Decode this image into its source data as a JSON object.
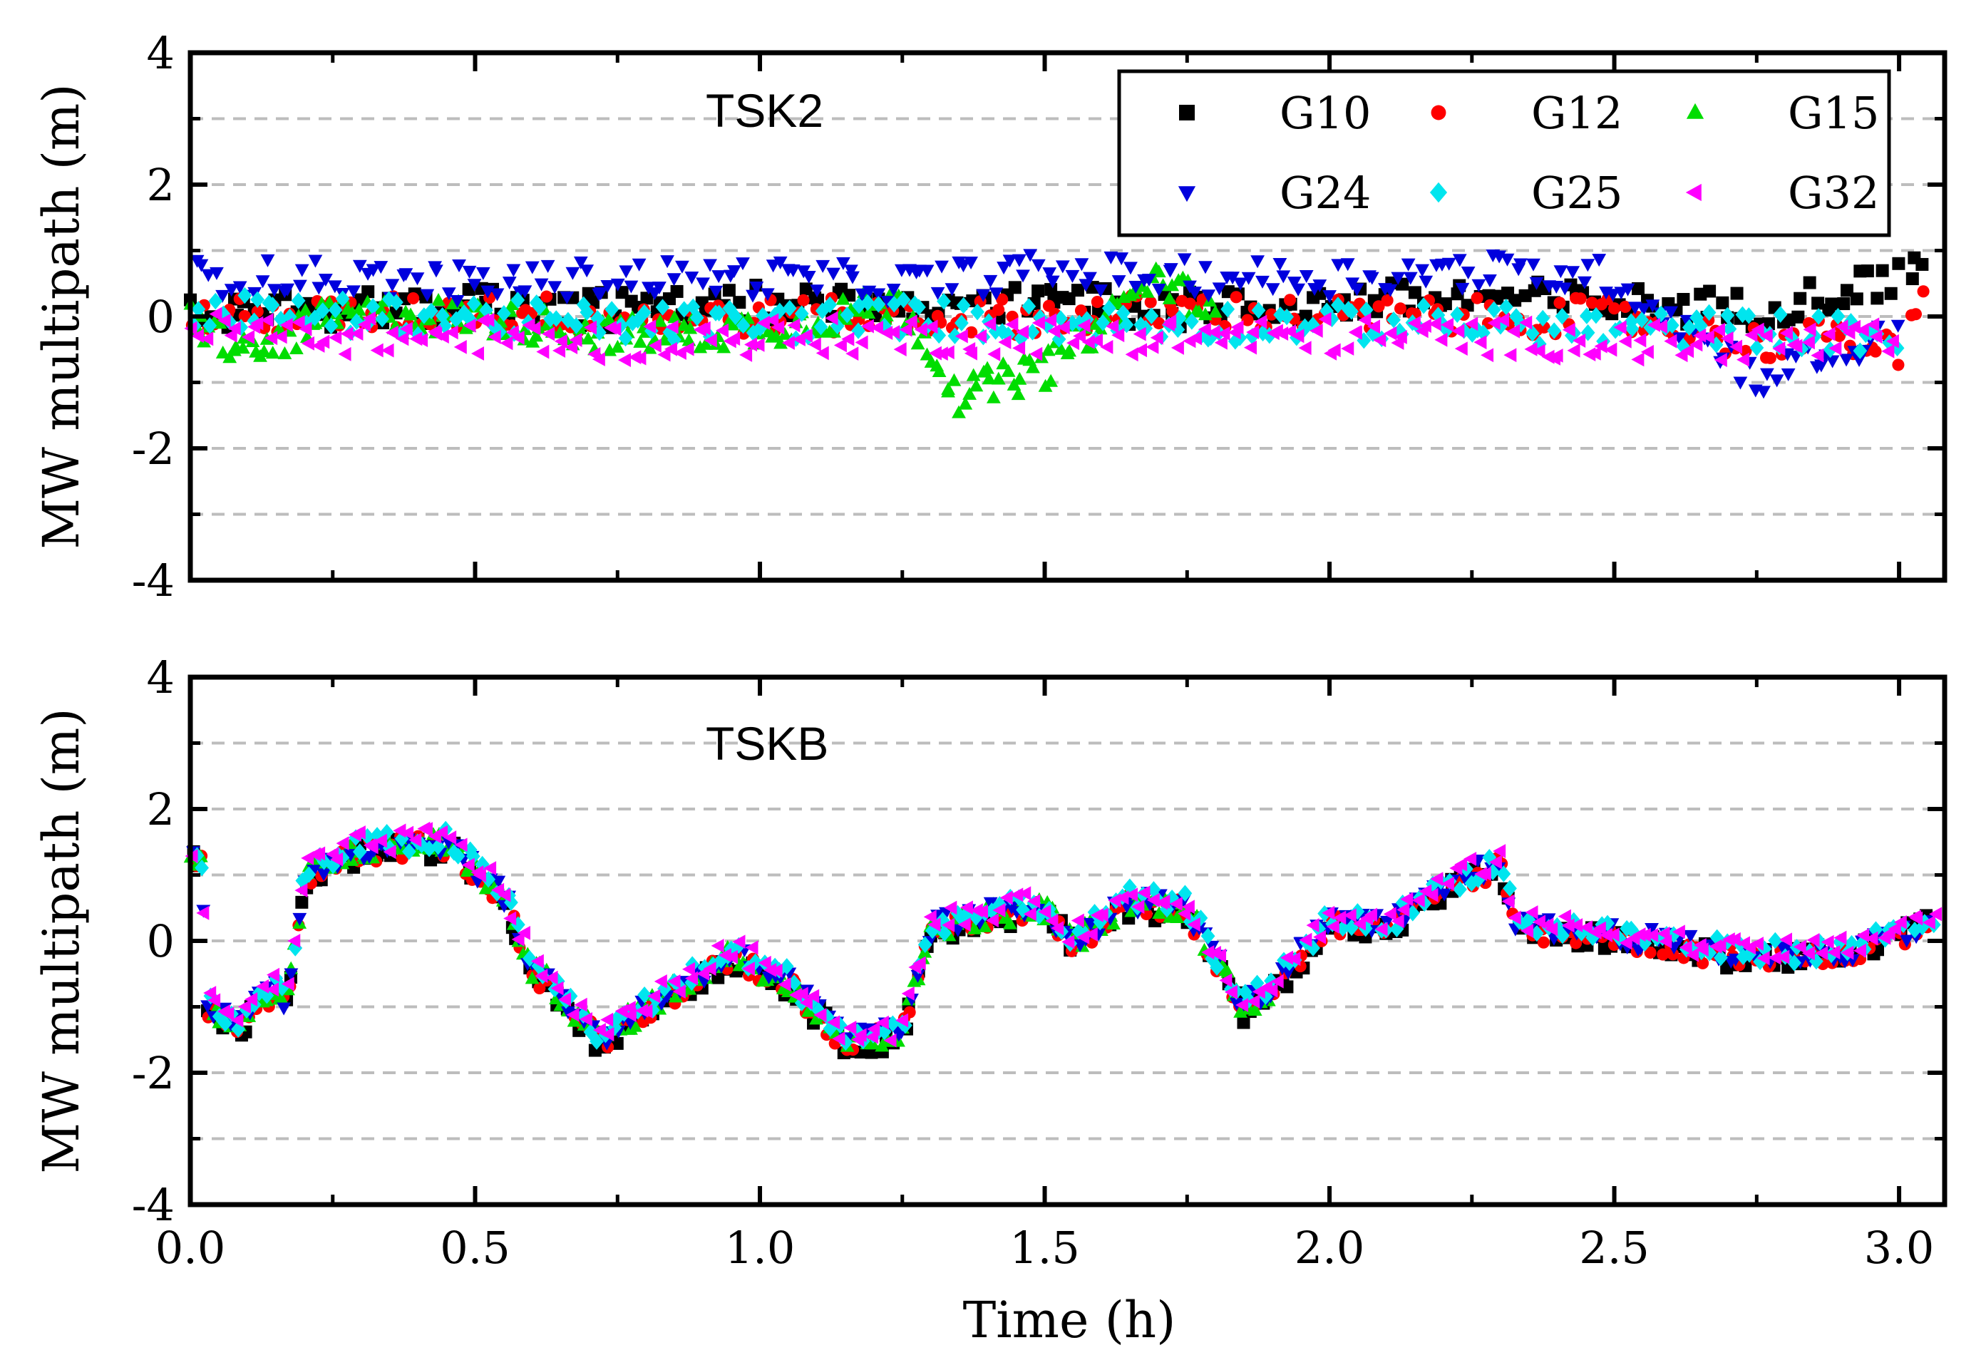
{
  "chart_data": [
    {
      "type": "scatter",
      "station": "TSK2",
      "ylabel": "MW multipath (m)",
      "xlabel": "",
      "xlim": [
        0.0,
        3.08
      ],
      "ylim": [
        -4,
        4
      ],
      "yticks": [
        "4",
        "2",
        "0",
        "-2",
        "-4"
      ],
      "grid": "dashed at every 1 m",
      "legend": "top-right",
      "series": [
        {
          "name": "G10",
          "marker": "square",
          "color": "#000000",
          "x": [
            0.0,
            0.25,
            0.5,
            0.75,
            1.0,
            1.25,
            1.5,
            1.75,
            2.0,
            2.25,
            2.5,
            2.75,
            2.9,
            3.0,
            3.05
          ],
          "y": [
            0.1,
            0.1,
            0.2,
            0.1,
            0.2,
            0.1,
            0.2,
            0.1,
            0.2,
            0.3,
            0.2,
            0.1,
            0.4,
            0.6,
            0.9
          ]
        },
        {
          "name": "G12",
          "marker": "circle",
          "color": "#ff0000",
          "x": [
            0.0,
            0.25,
            0.5,
            0.75,
            1.0,
            1.25,
            1.5,
            1.75,
            2.0,
            2.25,
            2.5,
            2.75,
            2.9,
            3.0,
            3.05
          ],
          "y": [
            0.0,
            0.0,
            0.1,
            0.0,
            0.0,
            0.0,
            0.0,
            0.1,
            0.0,
            0.0,
            0.0,
            -0.4,
            -0.3,
            -0.6,
            0.3
          ]
        },
        {
          "name": "G15",
          "marker": "triangle-up",
          "color": "#00dd00",
          "x": [
            0.0,
            0.1,
            0.25,
            0.5,
            0.75,
            1.0,
            1.25,
            1.35,
            1.5,
            1.7,
            1.8
          ],
          "y": [
            0.0,
            -0.6,
            0.0,
            0.0,
            -0.3,
            -0.2,
            0.2,
            -1.2,
            -0.8,
            0.6,
            0.0
          ]
        },
        {
          "name": "G24",
          "marker": "triangle-down",
          "color": "#0000dd",
          "x": [
            0.0,
            0.25,
            0.5,
            0.75,
            1.0,
            1.25,
            1.5,
            1.75,
            2.0,
            2.25,
            2.5,
            2.75,
            3.0
          ],
          "y": [
            0.6,
            0.6,
            0.5,
            0.6,
            0.6,
            0.5,
            0.7,
            0.6,
            0.6,
            0.7,
            0.6,
            -0.9,
            -0.3
          ]
        },
        {
          "name": "G25",
          "marker": "diamond",
          "color": "#00e5ee",
          "x": [
            0.0,
            0.25,
            0.5,
            0.75,
            1.0,
            1.25,
            1.5,
            1.75,
            2.0,
            2.25,
            2.5,
            2.75,
            3.0
          ],
          "y": [
            0.1,
            0.0,
            0.0,
            -0.1,
            -0.1,
            0.0,
            -0.1,
            -0.1,
            -0.1,
            -0.1,
            -0.2,
            -0.2,
            -0.3
          ]
        },
        {
          "name": "G32",
          "marker": "triangle-left",
          "color": "#ff00ff",
          "x": [
            0.0,
            0.25,
            0.5,
            0.75,
            1.0,
            1.25,
            1.5,
            1.75,
            2.0,
            2.25,
            2.5,
            2.75,
            3.0
          ],
          "y": [
            -0.2,
            -0.3,
            -0.3,
            -0.4,
            -0.3,
            -0.3,
            -0.3,
            -0.3,
            -0.3,
            -0.3,
            -0.4,
            -0.4,
            -0.4
          ]
        }
      ]
    },
    {
      "type": "scatter",
      "station": "TSKB",
      "ylabel": "MW multipath (m)",
      "xlabel": "Time (h)",
      "xlim": [
        0.0,
        3.08
      ],
      "ylim": [
        -4,
        4
      ],
      "xticks": [
        "0.0",
        "0.5",
        "1.0",
        "1.5",
        "2.0",
        "2.5",
        "3.0"
      ],
      "yticks": [
        "4",
        "2",
        "0",
        "-2",
        "-4"
      ],
      "grid": "dashed at every 1 m",
      "legend": "shared with top panel",
      "profile": {
        "x": [
          0.0,
          0.02,
          0.03,
          0.08,
          0.15,
          0.17,
          0.2,
          0.3,
          0.45,
          0.55,
          0.6,
          0.65,
          0.72,
          0.8,
          0.95,
          1.05,
          1.15,
          1.25,
          1.3,
          1.4,
          1.5,
          1.55,
          1.65,
          1.75,
          1.85,
          1.9,
          2.0,
          2.1,
          2.2,
          2.3,
          2.33,
          2.5,
          2.7,
          2.9,
          3.05
        ],
        "y": [
          1.3,
          1.2,
          -1.0,
          -1.3,
          -0.7,
          -1.0,
          1.0,
          1.4,
          1.5,
          0.7,
          -0.4,
          -0.8,
          -1.5,
          -1.0,
          -0.2,
          -0.6,
          -1.5,
          -1.4,
          0.2,
          0.4,
          0.5,
          0.0,
          0.6,
          0.5,
          -1.0,
          -0.7,
          0.3,
          0.2,
          0.8,
          1.2,
          0.2,
          0.1,
          -0.2,
          -0.2,
          0.3
        ]
      },
      "series": [
        {
          "name": "G10",
          "marker": "square",
          "color": "#000000"
        },
        {
          "name": "G12",
          "marker": "circle",
          "color": "#ff0000"
        },
        {
          "name": "G15",
          "marker": "triangle-up",
          "color": "#00dd00"
        },
        {
          "name": "G24",
          "marker": "triangle-down",
          "color": "#0000dd"
        },
        {
          "name": "G25",
          "marker": "diamond",
          "color": "#00e5ee"
        },
        {
          "name": "G32",
          "marker": "triangle-left",
          "color": "#ff00ff"
        }
      ]
    }
  ]
}
